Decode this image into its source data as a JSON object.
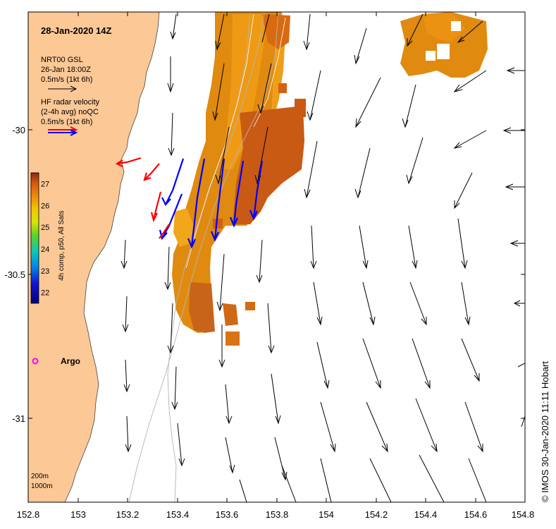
{
  "map": {
    "title": "28-Jan-2020 14Z",
    "model_label_line1": "NRT00 GSL",
    "model_label_line2": "26-Jan 18:00Z",
    "model_scale": "0.5m/s (1kt 6h)",
    "radar_label_line1": "HF radar velocity",
    "radar_label_line2": "(2-4h avg) noQC",
    "radar_scale": "0.5m/s (1kt 6h)",
    "argo_label": "Argo",
    "isobath_200": "200m",
    "isobath_1000": "1000m",
    "credit": "© IMOS 30-Jan-2020 11:11 Hobart",
    "colorbar": {
      "label": "4h comp, p50, All Sats",
      "ticks": [
        "22",
        "23",
        "24",
        "25",
        "26",
        "27"
      ],
      "range": [
        21.5,
        27.5
      ]
    },
    "x_ticks": [
      "152.8",
      "153",
      "153.2",
      "153.4",
      "153.6",
      "153.8",
      "154",
      "154.2",
      "154.4",
      "154.6",
      "154.8"
    ],
    "y_ticks": [
      "-30",
      "-30.5",
      "-31"
    ],
    "colors": {
      "land": "#fcc896",
      "sst_warm": "#e08a10",
      "sst_hot": "#c85a14",
      "model_arrow": "#000000",
      "radar_arrow_a": "#0000ff",
      "radar_arrow_b": "#ff0000",
      "argo": "#ff00ff"
    }
  }
}
